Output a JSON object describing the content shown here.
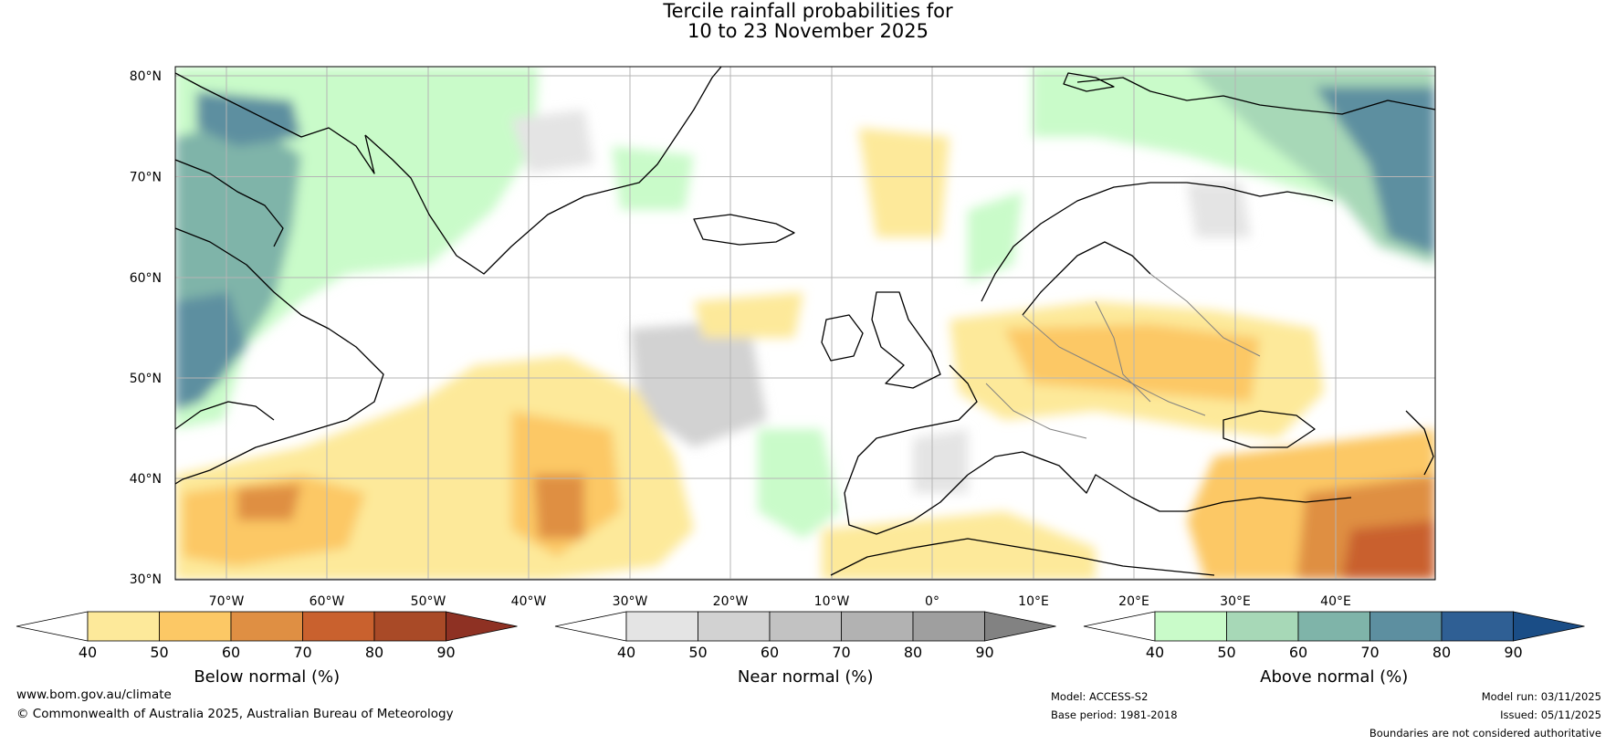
{
  "title": {
    "line1": "Tercile rainfall probabilities for",
    "line2": "10 to 23 November 2025"
  },
  "map": {
    "lat_labels": [
      "80°N",
      "70°N",
      "60°N",
      "50°N",
      "40°N",
      "30°N"
    ],
    "lon_labels": [
      "70°W",
      "60°W",
      "50°W",
      "40°W",
      "30°W",
      "20°W",
      "10°W",
      "0°",
      "10°E",
      "20°E",
      "30°E",
      "40°E"
    ]
  },
  "colorbars": [
    {
      "label": "Below normal (%)",
      "ticks": [
        "40",
        "50",
        "60",
        "70",
        "80",
        "90"
      ],
      "colors": [
        "#ffffff",
        "#fde99a",
        "#fcc865",
        "#df8f43",
        "#c9612e",
        "#a94a27",
        "#8e3123"
      ]
    },
    {
      "label": "Near normal (%)",
      "ticks": [
        "40",
        "50",
        "60",
        "70",
        "80",
        "90"
      ],
      "colors": [
        "#ffffff",
        "#e4e4e4",
        "#d2d2d2",
        "#c2c2c2",
        "#b2b2b2",
        "#9f9f9f",
        "#828282"
      ]
    },
    {
      "label": "Above normal (%)",
      "ticks": [
        "40",
        "50",
        "60",
        "70",
        "80",
        "90"
      ],
      "colors": [
        "#ffffff",
        "#c9fbc9",
        "#a7d8b7",
        "#7fb4a9",
        "#5d8fa0",
        "#2f5f94",
        "#1a4d86"
      ]
    }
  ],
  "footer": {
    "website": "www.bom.gov.au/climate",
    "copyright": "© Commonwealth of Australia 2025, Australian Bureau of Meteorology",
    "model": "Model: ACCESS-S2",
    "base_period": "Base period: 1981-2018",
    "model_run": "Model run: 03/11/2025",
    "issued": "Issued: 05/11/2025",
    "disclaimer": "Boundaries are not considered authoritative"
  }
}
